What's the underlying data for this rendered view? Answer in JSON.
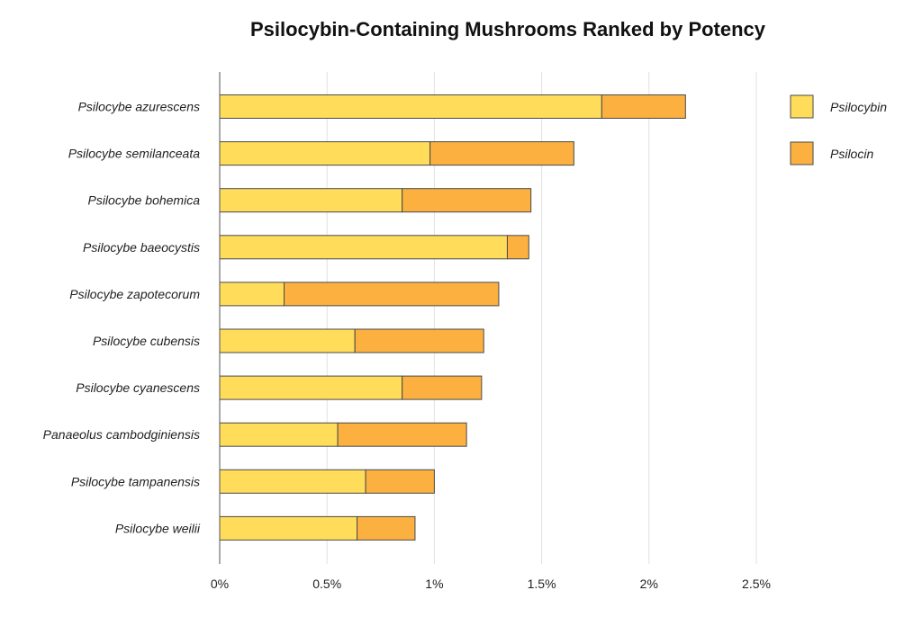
{
  "chart_data": {
    "type": "bar",
    "orientation": "horizontal",
    "stacked": true,
    "title": "Psilocybin-Containing Mushrooms Ranked by Potency",
    "xlabel": "",
    "ylabel": "",
    "xlim": [
      0,
      2.5
    ],
    "x_ticks": [
      0,
      0.5,
      1,
      1.5,
      2,
      2.5
    ],
    "x_tick_labels": [
      "0%",
      "0.5%",
      "1%",
      "1.5%",
      "2%",
      "2.5%"
    ],
    "grid": "vertical",
    "legend_position": "right",
    "categories": [
      "Psilocybe azurescens",
      "Psilocybe semilanceata",
      "Psilocybe bohemica",
      "Psilocybe baeocystis",
      "Psilocybe zapotecorum",
      "Psilocybe cubensis",
      "Psilocybe cyanescens",
      "Panaeolus cambodginiensis",
      "Psilocybe tampanensis",
      "Psilocybe weilii"
    ],
    "series": [
      {
        "name": "Psilocybin",
        "color": "#ffdc5a",
        "values": [
          1.78,
          0.98,
          0.85,
          1.34,
          0.3,
          0.63,
          0.85,
          0.55,
          0.68,
          0.64
        ]
      },
      {
        "name": "Psilocin",
        "color": "#fbb040",
        "values": [
          0.39,
          0.67,
          0.6,
          0.1,
          1.0,
          0.6,
          0.37,
          0.6,
          0.32,
          0.27
        ]
      }
    ]
  }
}
